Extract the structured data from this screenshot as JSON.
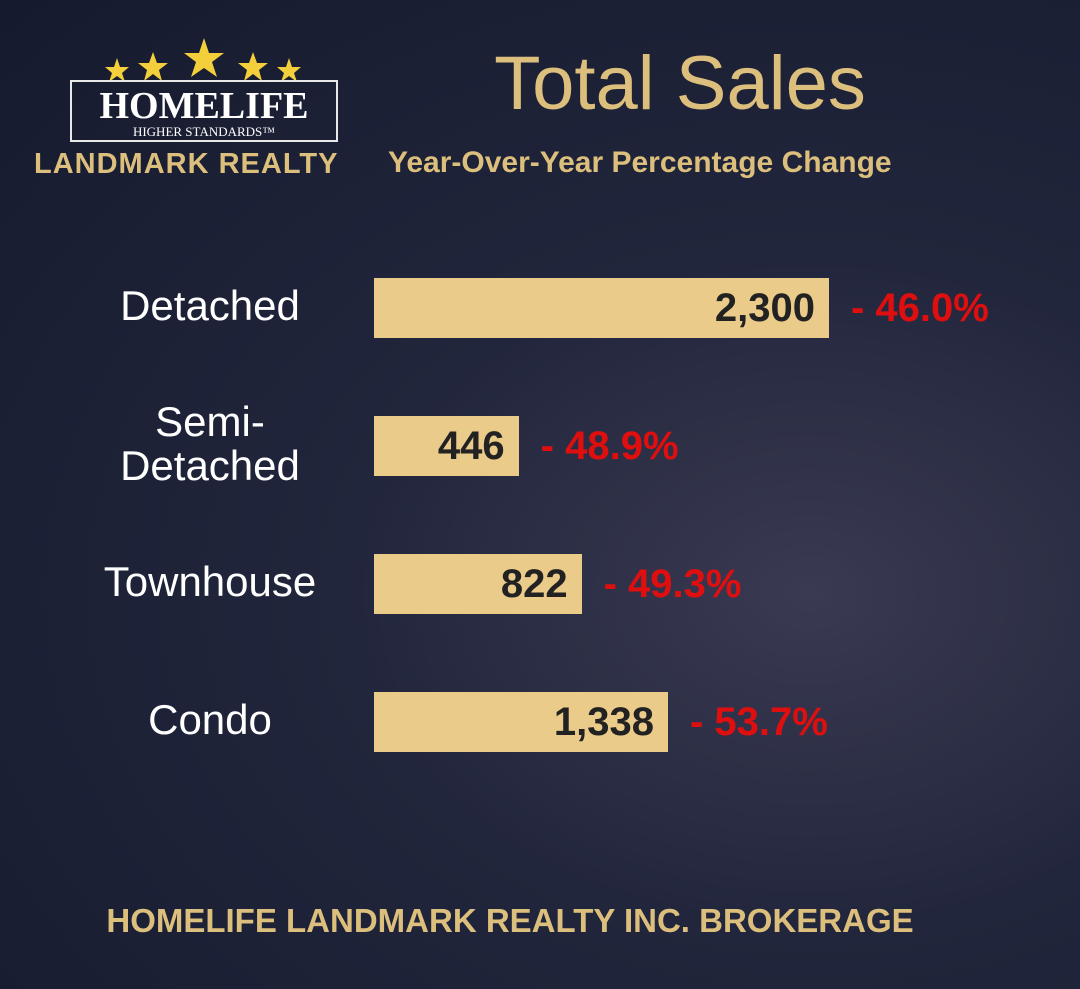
{
  "branding": {
    "logo_name": "HOMELIFE",
    "logo_tagline": "HIGHER STANDARDS™",
    "company": "LANDMARK REALTY",
    "footer": "HOMELIFE LANDMARK REALTY INC. BROKERAGE"
  },
  "chart_data": {
    "type": "bar",
    "orientation": "horizontal",
    "title": "Total Sales",
    "subtitle": "Year-Over-Year Percentage Change",
    "categories": [
      "Detached",
      "Semi-\nDetached",
      "Townhouse",
      "Condo"
    ],
    "values": [
      2300,
      446,
      822,
      1338
    ],
    "value_labels": [
      "2,300",
      "446",
      "822",
      "1,338"
    ],
    "color": "#eacb89",
    "change_values": [
      -46.0,
      -48.9,
      -49.3,
      -53.7
    ],
    "change_labels": [
      "- 46.0%",
      "- 48.9%",
      "- 49.3%",
      "- 53.7%"
    ],
    "change_color": "#e00f0f"
  }
}
